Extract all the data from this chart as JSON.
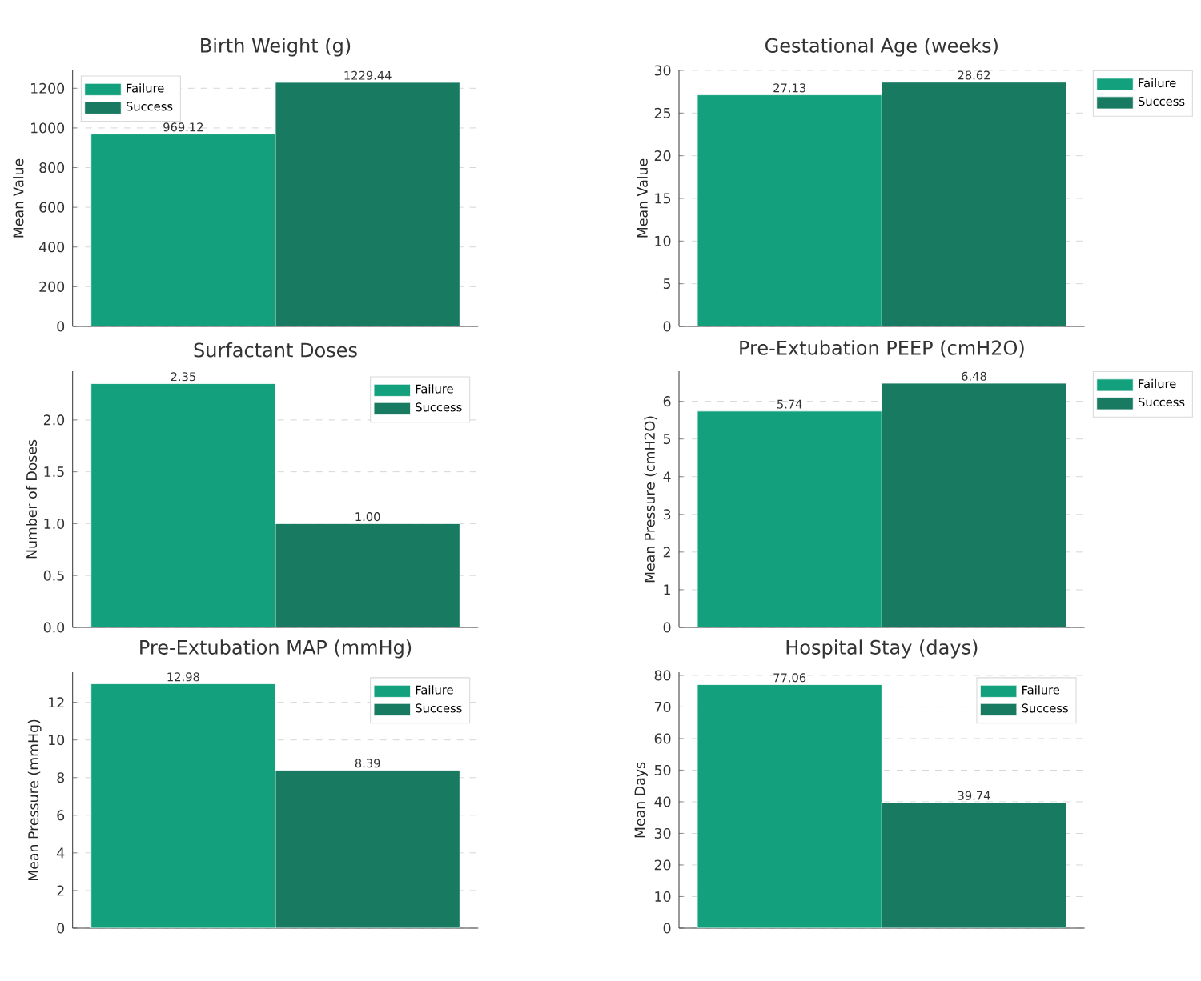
{
  "chart_data": [
    {
      "type": "bar",
      "title": "Birth Weight (g)",
      "ylabel": "Mean Value",
      "categories": [
        null,
        null
      ],
      "ylim": [
        0,
        1290
      ],
      "yticks": [
        0,
        200,
        400,
        600,
        800,
        1000,
        1200
      ],
      "grid": "y",
      "legend": "top left",
      "series": [
        {
          "name": "Failure",
          "color": "#13a07d",
          "values": [
            969.12,
            null
          ],
          "value_labels": [
            "969.12",
            null
          ]
        },
        {
          "name": "Success",
          "color": "#177a61",
          "values": [
            null,
            1229.44
          ],
          "value_labels": [
            null,
            "1229.44"
          ]
        }
      ]
    },
    {
      "type": "bar",
      "title": "Gestational Age (weeks)",
      "ylabel": "Mean Value",
      "categories": [
        null,
        null
      ],
      "ylim": [
        0,
        30
      ],
      "yticks": [
        0,
        5,
        10,
        15,
        20,
        25,
        30
      ],
      "grid": "y",
      "legend": "top right",
      "series": [
        {
          "name": "Failure",
          "color": "#13a07d",
          "values": [
            27.13,
            null
          ],
          "value_labels": [
            "27.13",
            null
          ]
        },
        {
          "name": "Success",
          "color": "#177a61",
          "values": [
            null,
            28.62
          ],
          "value_labels": [
            null,
            "28.62"
          ]
        }
      ]
    },
    {
      "type": "bar",
      "title": "Surfactant Doses",
      "ylabel": "Number of Doses",
      "categories": [
        null,
        null
      ],
      "ylim": [
        0,
        2.47
      ],
      "yticks": [
        {
          "value": 0,
          "label": "0.0"
        },
        0.5,
        {
          "value": 1,
          "label": "1.0"
        },
        1.5,
        {
          "value": 2,
          "label": "2.0"
        }
      ],
      "grid": "y",
      "legend": "top right",
      "series": [
        {
          "name": "Failure",
          "color": "#13a07d",
          "values": [
            2.35,
            null
          ],
          "value_labels": [
            "2.35",
            null
          ]
        },
        {
          "name": "Success",
          "color": "#177a61",
          "values": [
            null,
            1.0
          ],
          "value_labels": [
            null,
            "1.00"
          ]
        }
      ]
    },
    {
      "type": "bar",
      "title": "Pre-Extubation PEEP (cmH2O)",
      "ylabel": "Mean Pressure (cmH2O)",
      "categories": [
        null,
        null
      ],
      "ylim": [
        0,
        6.8
      ],
      "yticks": [
        0,
        1,
        2,
        3,
        4,
        5,
        6
      ],
      "grid": "y",
      "legend": "top right",
      "series": [
        {
          "name": "Failure",
          "color": "#13a07d",
          "values": [
            5.74,
            null
          ],
          "value_labels": [
            "5.74",
            null
          ]
        },
        {
          "name": "Success",
          "color": "#177a61",
          "values": [
            null,
            6.48
          ],
          "value_labels": [
            null,
            "6.48"
          ]
        }
      ]
    },
    {
      "type": "bar",
      "title": "Pre-Extubation MAP (mmHg)",
      "ylabel": "Mean Pressure (mmHg)",
      "categories": [
        null,
        null
      ],
      "ylim": [
        0,
        13.6
      ],
      "yticks": [
        0,
        2,
        4,
        6,
        8,
        10,
        12
      ],
      "grid": "y",
      "legend": "top right",
      "series": [
        {
          "name": "Failure",
          "color": "#13a07d",
          "values": [
            12.98,
            null
          ],
          "value_labels": [
            "12.98",
            null
          ]
        },
        {
          "name": "Success",
          "color": "#177a61",
          "values": [
            null,
            8.39
          ],
          "value_labels": [
            null,
            "8.39"
          ]
        }
      ]
    },
    {
      "type": "bar",
      "title": "Hospital Stay (days)",
      "ylabel": "Mean Days",
      "categories": [
        null,
        null
      ],
      "ylim": [
        0,
        81
      ],
      "yticks": [
        0,
        10,
        20,
        30,
        40,
        50,
        60,
        70,
        80
      ],
      "grid": "y",
      "legend": "top right",
      "series": [
        {
          "name": "Failure",
          "color": "#13a07d",
          "values": [
            77.06,
            null
          ],
          "value_labels": [
            "77.06",
            null
          ]
        },
        {
          "name": "Success",
          "color": "#177a61",
          "values": [
            null,
            39.74
          ],
          "value_labels": [
            null,
            "39.74"
          ]
        }
      ]
    }
  ]
}
